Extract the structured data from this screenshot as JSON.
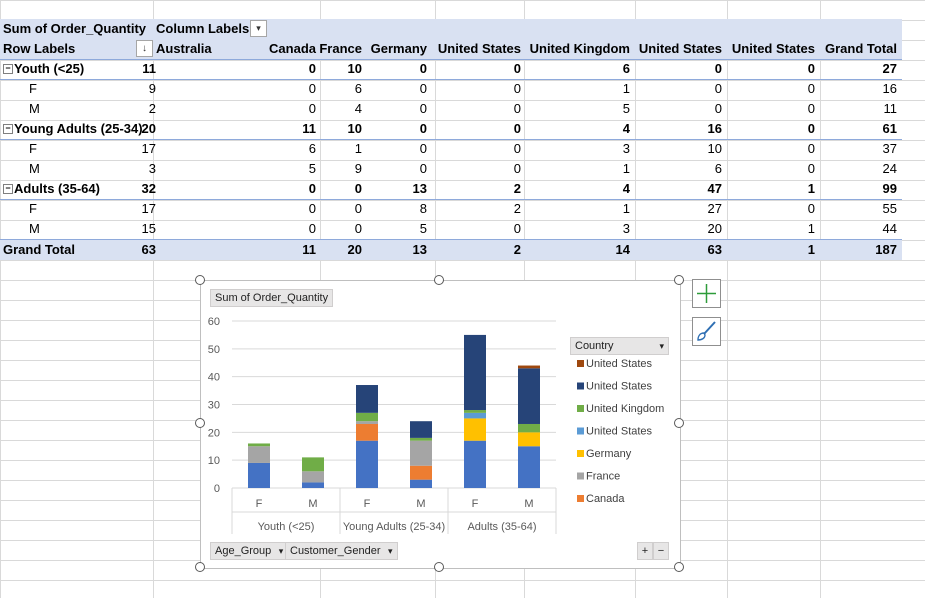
{
  "pivot": {
    "title": "Sum of Order_Quantity",
    "column_labels": "Column Labels",
    "row_labels": "Row Labels",
    "columns": [
      "Australia",
      "Canada",
      "France",
      "Germany",
      "United  States",
      "United Kingdom",
      "United States",
      "United States",
      "Grand Total"
    ],
    "rows": [
      {
        "label": "Youth (<25)",
        "type": "group",
        "values": [
          "11",
          "0",
          "10",
          "0",
          "0",
          "6",
          "0",
          "0",
          "27"
        ]
      },
      {
        "label": "F",
        "type": "leaf",
        "values": [
          "9",
          "0",
          "6",
          "0",
          "0",
          "1",
          "0",
          "0",
          "16"
        ]
      },
      {
        "label": "M",
        "type": "leaf",
        "values": [
          "2",
          "0",
          "4",
          "0",
          "0",
          "5",
          "0",
          "0",
          "11"
        ]
      },
      {
        "label": "Young Adults (25-34)",
        "type": "group",
        "values": [
          "20",
          "11",
          "10",
          "0",
          "0",
          "4",
          "16",
          "0",
          "61"
        ]
      },
      {
        "label": "F",
        "type": "leaf",
        "values": [
          "17",
          "6",
          "1",
          "0",
          "0",
          "3",
          "10",
          "0",
          "37"
        ]
      },
      {
        "label": "M",
        "type": "leaf",
        "values": [
          "3",
          "5",
          "9",
          "0",
          "0",
          "1",
          "6",
          "0",
          "24"
        ]
      },
      {
        "label": "Adults (35-64)",
        "type": "group",
        "values": [
          "32",
          "0",
          "0",
          "13",
          "2",
          "4",
          "47",
          "1",
          "99"
        ]
      },
      {
        "label": "F",
        "type": "leaf",
        "values": [
          "17",
          "0",
          "0",
          "8",
          "2",
          "1",
          "27",
          "0",
          "55"
        ]
      },
      {
        "label": "M",
        "type": "leaf",
        "values": [
          "15",
          "0",
          "0",
          "5",
          "0",
          "3",
          "20",
          "1",
          "44"
        ]
      },
      {
        "label": "Grand Total",
        "type": "grand",
        "values": [
          "63",
          "11",
          "20",
          "13",
          "2",
          "14",
          "63",
          "1",
          "187"
        ]
      }
    ],
    "collapse_symbol": "−",
    "sort_symbol": "↓",
    "dropdown_symbol": "▾"
  },
  "chart": {
    "value_button": "Sum of Order_Quantity",
    "axis_buttons": [
      "Age_Group",
      "Customer_Gender"
    ],
    "legend_button": "Country",
    "zoom_in": "+",
    "zoom_out": "−"
  },
  "chart_data": {
    "type": "bar",
    "stacked": true,
    "title": "Sum of Order_Quantity",
    "categories": [
      "F",
      "M",
      "F",
      "M",
      "F",
      "M"
    ],
    "groups": [
      {
        "label": "Youth (<25)",
        "span": 2
      },
      {
        "label": "Young Adults (25-34)",
        "span": 2
      },
      {
        "label": "Adults (35-64)",
        "span": 2
      }
    ],
    "ylim": [
      0,
      60
    ],
    "yticks": [
      0,
      10,
      20,
      30,
      40,
      50,
      60
    ],
    "series": [
      {
        "name": "Australia",
        "color": "#4472c4",
        "values": [
          9,
          2,
          17,
          3,
          17,
          15
        ],
        "in_legend": false
      },
      {
        "name": "Canada",
        "color": "#ed7d31",
        "values": [
          0,
          0,
          6,
          5,
          0,
          0
        ],
        "in_legend": true
      },
      {
        "name": "France",
        "color": "#a5a5a5",
        "values": [
          6,
          4,
          1,
          9,
          0,
          0
        ],
        "in_legend": true
      },
      {
        "name": "Germany",
        "color": "#ffc000",
        "values": [
          0,
          0,
          0,
          0,
          8,
          5
        ],
        "in_legend": true
      },
      {
        "name": "United  States",
        "color": "#5b9bd5",
        "values": [
          0,
          0,
          0,
          0,
          2,
          0
        ],
        "in_legend": true
      },
      {
        "name": "United Kingdom",
        "color": "#70ad47",
        "values": [
          1,
          5,
          3,
          1,
          1,
          3
        ],
        "in_legend": true
      },
      {
        "name": "United States",
        "color": "#264478",
        "values": [
          0,
          0,
          10,
          6,
          27,
          20
        ],
        "in_legend": true
      },
      {
        "name": "United States",
        "color": "#9e480e",
        "values": [
          0,
          0,
          0,
          0,
          0,
          1
        ],
        "in_legend": true
      }
    ],
    "legend_title": "Country",
    "legend_order": [
      7,
      6,
      5,
      4,
      3,
      2,
      1
    ]
  }
}
